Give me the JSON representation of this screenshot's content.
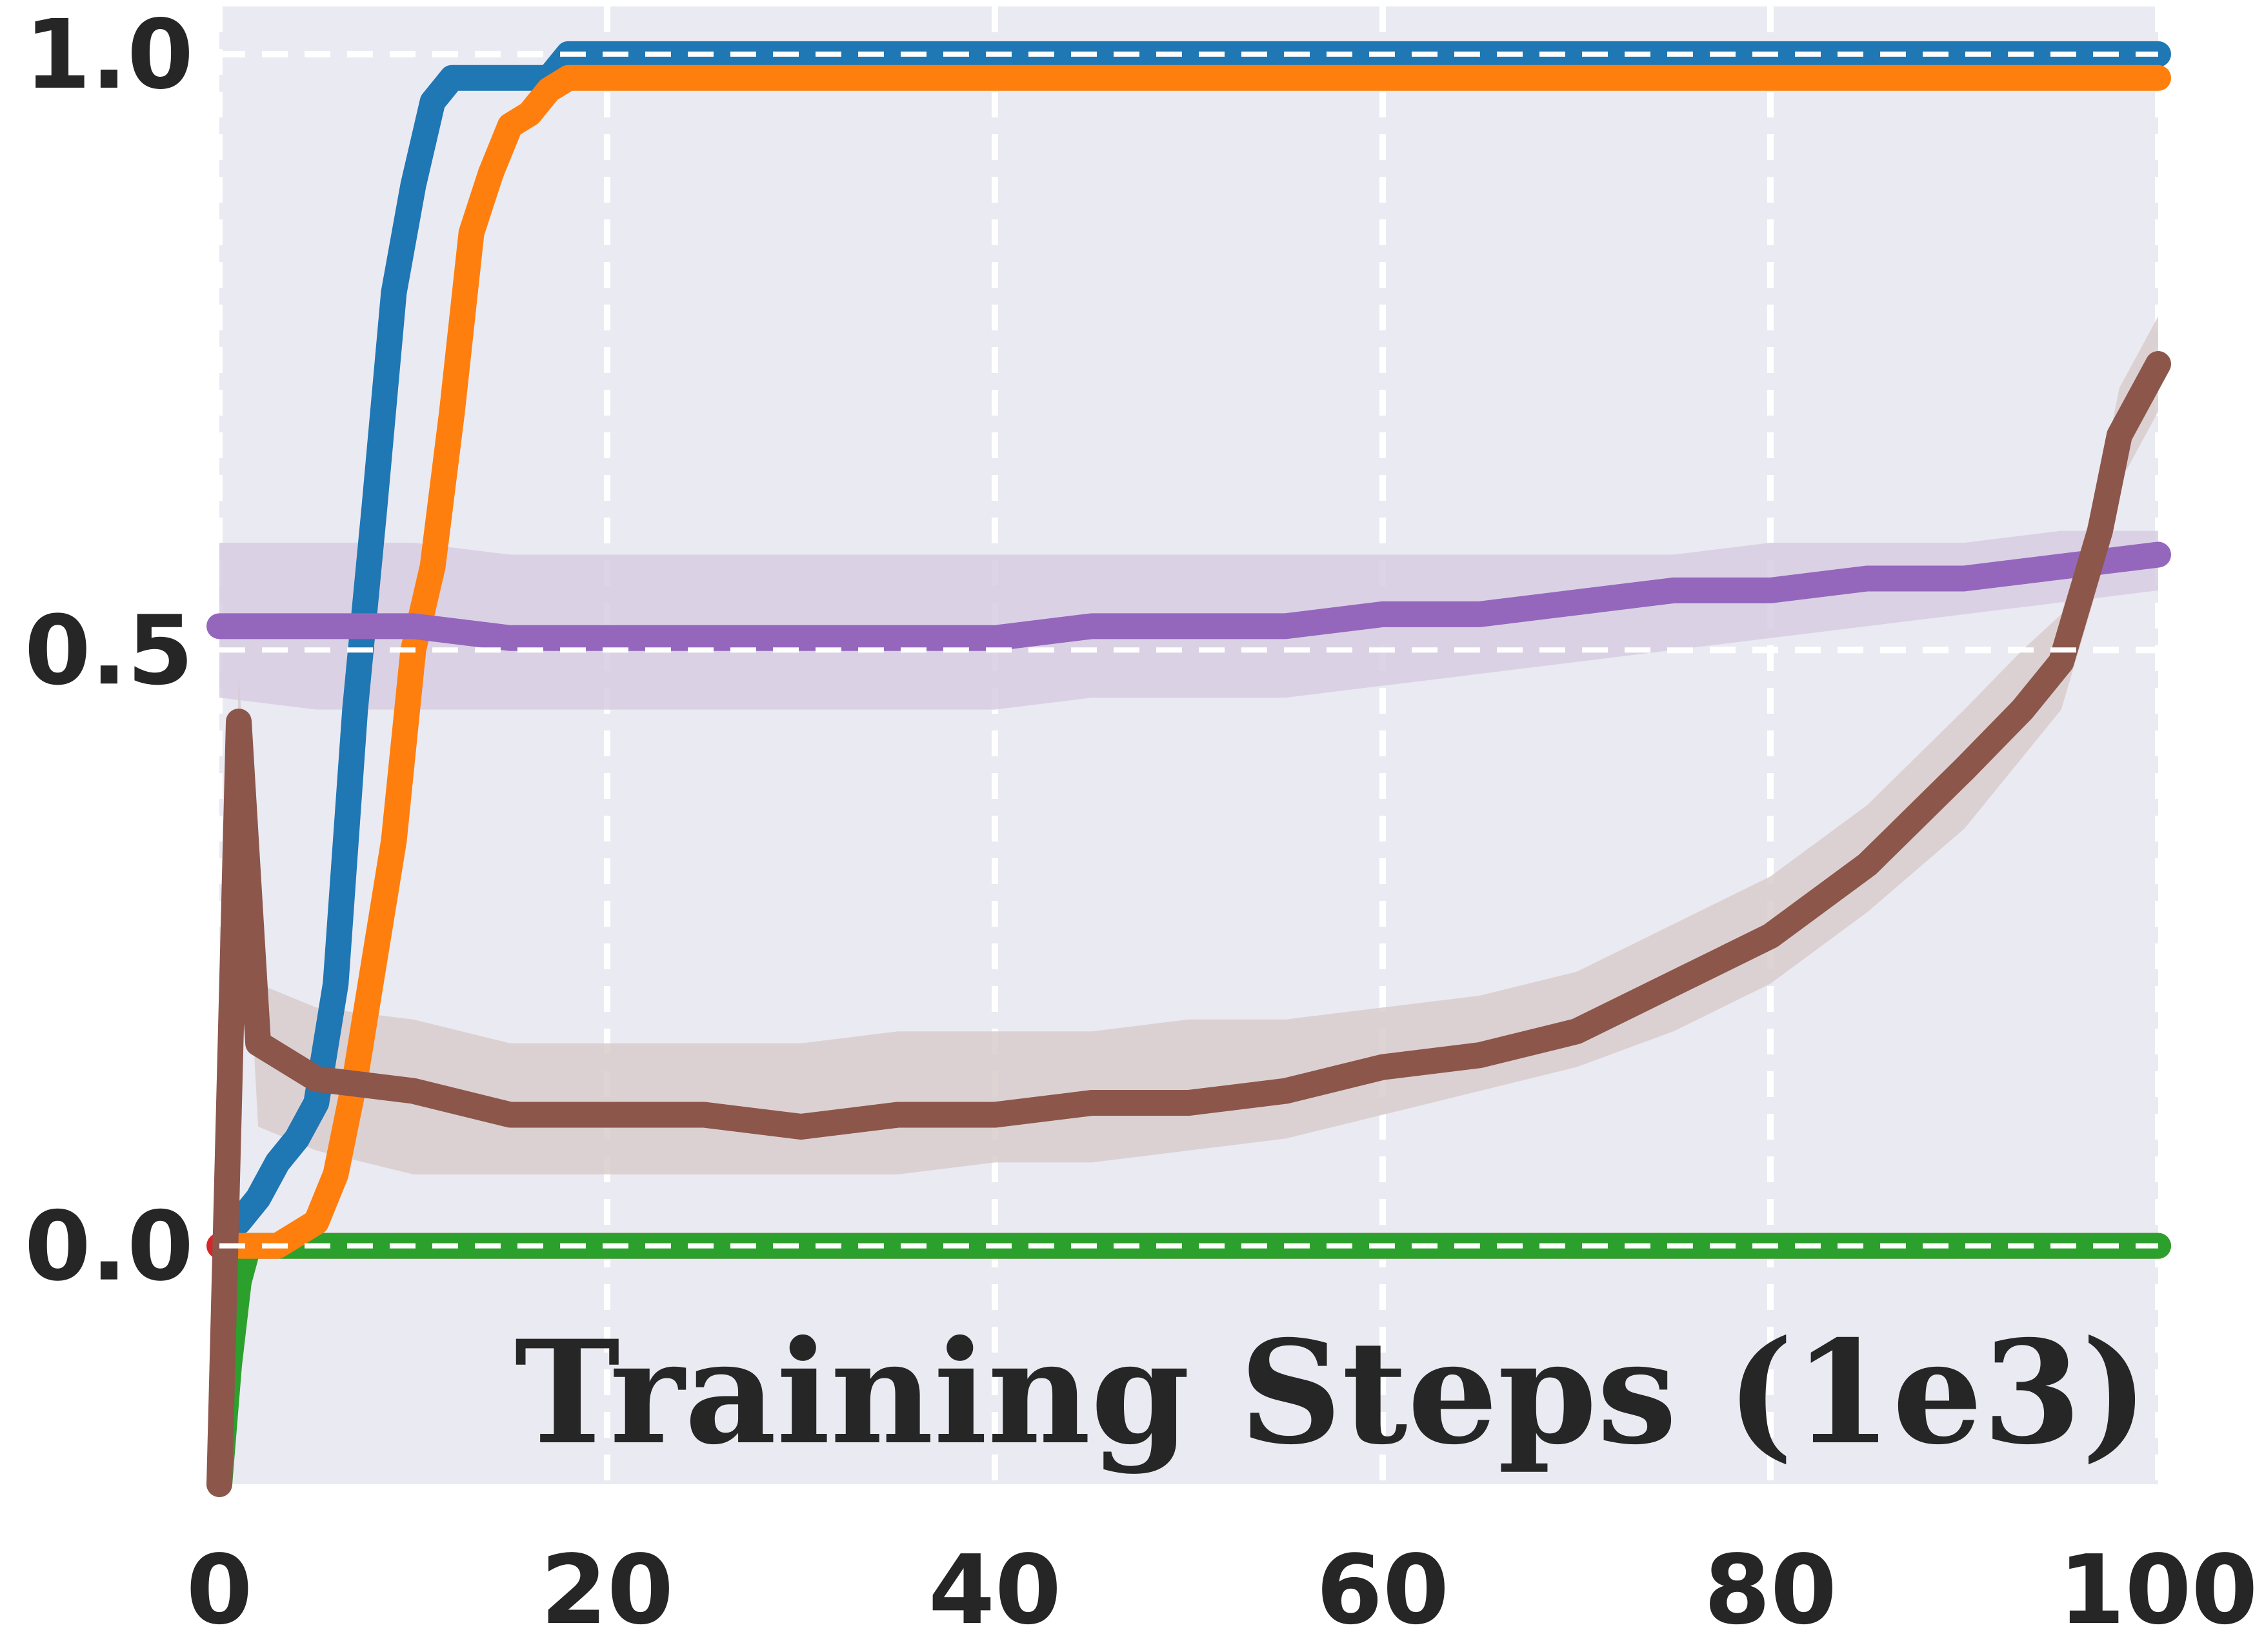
{
  "chart_data": {
    "type": "line",
    "xlabel": "Training Steps (1e3)",
    "ylabel": "",
    "title": "",
    "xlim": [
      0,
      100
    ],
    "ylim": [
      -0.2,
      1.04
    ],
    "xticks": [
      0,
      20,
      40,
      60,
      80,
      100
    ],
    "yticks": [
      0.0,
      0.5,
      1.0
    ],
    "xtick_labels": [
      "0",
      "20",
      "40",
      "60",
      "80",
      "100"
    ],
    "ytick_labels": [
      "0.0",
      "0.5",
      "1.0"
    ],
    "grid": true,
    "grid_style": "dashed white",
    "background": "#eaeaf2",
    "series": [
      {
        "color": "#d62728",
        "x": [
          0,
          100
        ],
        "y": [
          0.0,
          0.0
        ]
      },
      {
        "color": "#2ca02c",
        "x": [
          0,
          0.5,
          1,
          1.5,
          2,
          100
        ],
        "y": [
          -0.2,
          -0.1,
          -0.03,
          0.0,
          0.0,
          0.0
        ]
      },
      {
        "color": "#1f77b4",
        "x": [
          1,
          2,
          3,
          4,
          5,
          6,
          7,
          8,
          9,
          10,
          11,
          12,
          13,
          14,
          15,
          16,
          17,
          18,
          100
        ],
        "y": [
          0.02,
          0.04,
          0.07,
          0.09,
          0.12,
          0.22,
          0.45,
          0.62,
          0.8,
          0.89,
          0.96,
          0.98,
          0.98,
          0.98,
          0.98,
          0.98,
          0.98,
          1.0,
          1.0
        ]
      },
      {
        "color": "#ff7f0e",
        "x": [
          1,
          2,
          3,
          4,
          5,
          6,
          7,
          8,
          9,
          10,
          11,
          12,
          13,
          14,
          15,
          16,
          17,
          18,
          19,
          20,
          100
        ],
        "y": [
          0.0,
          0.0,
          0.0,
          0.01,
          0.02,
          0.06,
          0.14,
          0.24,
          0.34,
          0.5,
          0.57,
          0.7,
          0.85,
          0.9,
          0.94,
          0.95,
          0.97,
          0.98,
          0.98,
          0.98,
          0.98
        ]
      },
      {
        "color": "#9467bd",
        "band_color": "#d8cce3",
        "x": [
          0,
          5,
          10,
          15,
          20,
          25,
          30,
          35,
          40,
          45,
          50,
          55,
          60,
          65,
          70,
          75,
          80,
          85,
          90,
          95,
          100
        ],
        "y": [
          0.52,
          0.52,
          0.52,
          0.51,
          0.51,
          0.51,
          0.51,
          0.51,
          0.51,
          0.52,
          0.52,
          0.52,
          0.53,
          0.53,
          0.54,
          0.55,
          0.55,
          0.56,
          0.56,
          0.57,
          0.58
        ],
        "y_low": [
          0.46,
          0.45,
          0.45,
          0.45,
          0.45,
          0.45,
          0.45,
          0.45,
          0.45,
          0.46,
          0.46,
          0.46,
          0.47,
          0.48,
          0.49,
          0.5,
          0.51,
          0.52,
          0.53,
          0.54,
          0.55
        ],
        "y_high": [
          0.59,
          0.59,
          0.59,
          0.58,
          0.58,
          0.58,
          0.58,
          0.58,
          0.58,
          0.58,
          0.58,
          0.58,
          0.58,
          0.58,
          0.58,
          0.58,
          0.59,
          0.59,
          0.59,
          0.6,
          0.6
        ]
      },
      {
        "color": "#8c564b",
        "band_color": "#d9cccc",
        "x": [
          0,
          1,
          2,
          5,
          10,
          15,
          20,
          25,
          30,
          35,
          40,
          45,
          50,
          55,
          60,
          65,
          70,
          75,
          80,
          85,
          90,
          93,
          95,
          97,
          98,
          100
        ],
        "y": [
          -0.2,
          0.44,
          0.17,
          0.14,
          0.13,
          0.11,
          0.11,
          0.11,
          0.1,
          0.11,
          0.11,
          0.12,
          0.12,
          0.13,
          0.15,
          0.16,
          0.18,
          0.22,
          0.26,
          0.32,
          0.4,
          0.45,
          0.49,
          0.6,
          0.68,
          0.74
        ],
        "y_low": [
          -0.2,
          0.4,
          0.1,
          0.08,
          0.06,
          0.06,
          0.06,
          0.06,
          0.06,
          0.06,
          0.07,
          0.07,
          0.08,
          0.09,
          0.11,
          0.13,
          0.15,
          0.18,
          0.22,
          0.28,
          0.35,
          0.41,
          0.45,
          0.56,
          0.64,
          0.7
        ],
        "y_high": [
          -0.2,
          0.48,
          0.22,
          0.2,
          0.19,
          0.17,
          0.17,
          0.17,
          0.17,
          0.18,
          0.18,
          0.18,
          0.19,
          0.19,
          0.2,
          0.21,
          0.23,
          0.27,
          0.31,
          0.37,
          0.45,
          0.5,
          0.53,
          0.64,
          0.72,
          0.78
        ]
      }
    ]
  }
}
